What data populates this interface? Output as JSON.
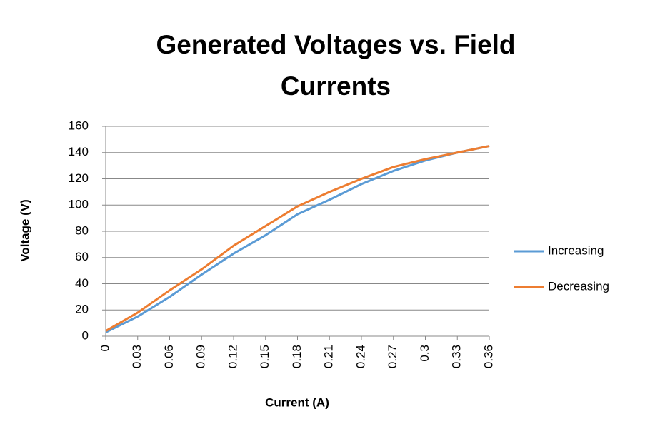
{
  "chart_data": {
    "type": "line",
    "title": "Generated Voltages vs. Field Currents",
    "x_label": "Current (A)",
    "y_label": "Voltage (V)",
    "categories": [
      "0",
      "0.03",
      "0.06",
      "0.09",
      "0.12",
      "0.15",
      "0.18",
      "0.21",
      "0.24",
      "0.27",
      "0.3",
      "0.33",
      "0.36"
    ],
    "series": [
      {
        "name": "Increasing",
        "color": "#5b9bd5",
        "values": [
          3,
          15,
          30,
          47,
          63,
          77,
          93,
          104,
          116,
          126,
          134,
          140,
          145
        ]
      },
      {
        "name": "Decreasing",
        "color": "#ed7d31",
        "values": [
          4,
          18,
          35,
          51,
          69,
          84,
          99,
          110,
          120,
          129,
          135,
          140,
          145
        ]
      }
    ],
    "ylim": [
      0,
      160
    ],
    "yticks": [
      0,
      20,
      40,
      60,
      80,
      100,
      120,
      140,
      160
    ],
    "grid": true,
    "legend": "right"
  }
}
